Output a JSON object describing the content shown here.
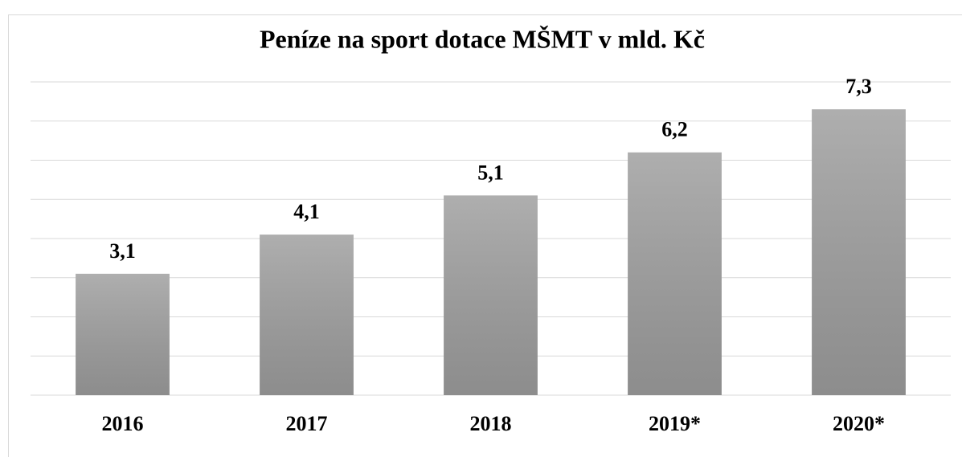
{
  "chart_data": {
    "type": "bar",
    "title": "Peníze na sport dotace MŠMT v mld. Kč",
    "categories": [
      "2016",
      "2017",
      "2018",
      "2019*",
      "2020*"
    ],
    "values": [
      3.1,
      4.1,
      5.1,
      6.2,
      7.3
    ],
    "value_labels": [
      "3,1",
      "4,1",
      "5,1",
      "6,2",
      "7,3"
    ],
    "color": "#a0a0a0",
    "ylim": [
      0,
      8
    ],
    "yticks": [
      0,
      1,
      2,
      3,
      4,
      5,
      6,
      7,
      8
    ],
    "grid": true
  }
}
